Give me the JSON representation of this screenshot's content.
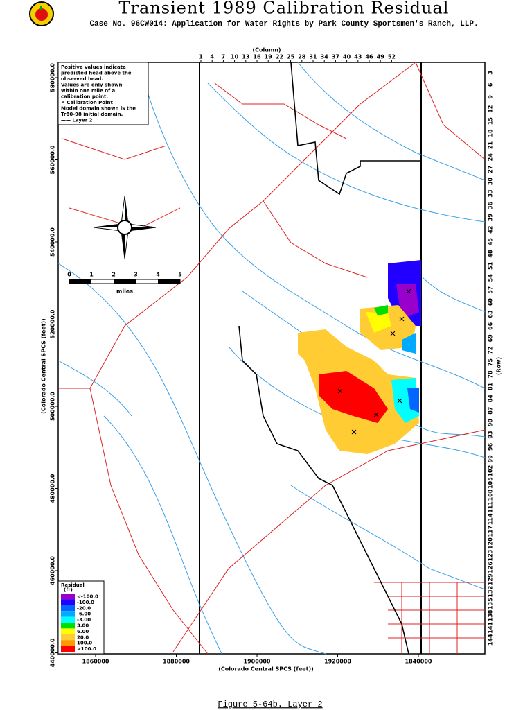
{
  "header": {
    "title": "Transient 1989 Calibration Residual",
    "subtitle": "Case No. 96CW014: Application for Water Rights by Park County Sportsmen's Ranch, LLP."
  },
  "map": {
    "column_label": "(Column)",
    "columns": [
      1,
      4,
      7,
      10,
      13,
      16,
      19,
      22,
      25,
      28,
      31,
      34,
      37,
      40,
      43,
      46,
      49,
      52
    ],
    "row_label": "(Row)",
    "rows": [
      3,
      6,
      9,
      12,
      15,
      18,
      21,
      24,
      27,
      30,
      33,
      36,
      39,
      42,
      45,
      48,
      51,
      54,
      57,
      60,
      63,
      66,
      69,
      72,
      75,
      78,
      81,
      84,
      87,
      90,
      93,
      96,
      99,
      102,
      105,
      108,
      111,
      114,
      117,
      120,
      123,
      126,
      129,
      132,
      135,
      138,
      141,
      144
    ],
    "y_axis_label": "(Colorado Central SPCS (feet))",
    "y_ticks": [
      "580000.0",
      "560000.0",
      "540000.0",
      "520000.0",
      "500000.0",
      "480000.0",
      "460000.0",
      "440000.0"
    ],
    "x_axis_label": "(Colorado Central SPCS (feet))",
    "x_ticks": [
      "1860000",
      "1880000",
      "1900000",
      "1920000",
      "1840000"
    ]
  },
  "notes": [
    "Positive values indicate",
    "predicted head above the",
    "observed head.",
    "Values are only shown",
    "within one mile of a",
    "calibration point.",
    "✕ Calibration Point",
    "Model domain shown is the",
    "Tr80-98 initial domain.",
    "—— Layer 2"
  ],
  "scale_bar": {
    "ticks": [
      "0",
      "1",
      "2",
      "3",
      "4",
      "5"
    ],
    "unit": "miles"
  },
  "legend": {
    "title": "Residual",
    "unit": "(ft)",
    "items": [
      {
        "label": "<-100.0",
        "color": "#9900cc"
      },
      {
        "label": "-100.0",
        "color": "#2200ff"
      },
      {
        "label": "-20.0",
        "color": "#0066ff"
      },
      {
        "label": "-6.00",
        "color": "#00aaff"
      },
      {
        "label": "-3.00",
        "color": "#00ffff"
      },
      {
        "label": "3.00",
        "color": "#00dd00"
      },
      {
        "label": "6.00",
        "color": "#ffff00"
      },
      {
        "label": "20.0",
        "color": "#ffcc33"
      },
      {
        "label": "100.0",
        "color": "#ff9900"
      },
      {
        "label": ">100.0",
        "color": "#ff0000"
      }
    ]
  },
  "caption": "Figure 5-64b.  Layer 2"
}
